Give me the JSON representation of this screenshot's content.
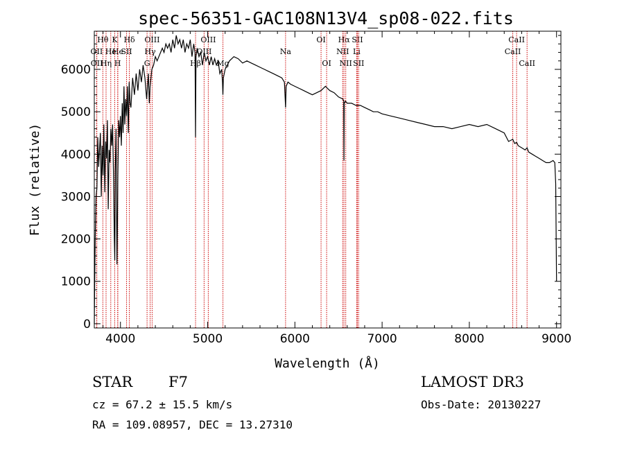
{
  "chart_data": {
    "type": "line",
    "title": "spec-56351-GAC108N13V4_sp08-022.fits",
    "xlabel": "Wavelength (Å)",
    "ylabel": "Flux (relative)",
    "xlim": [
      3700,
      9050
    ],
    "ylim": [
      -100,
      6900
    ],
    "xticks": [
      4000,
      5000,
      6000,
      7000,
      8000,
      9000
    ],
    "yticks": [
      0,
      1000,
      2000,
      3000,
      4000,
      5000,
      6000
    ],
    "line_color": "#000000",
    "marker_color": "#cc0000",
    "series": [
      {
        "name": "flux",
        "x": [
          3700,
          3705,
          3710,
          3720,
          3730,
          3740,
          3750,
          3760,
          3770,
          3780,
          3790,
          3800,
          3810,
          3820,
          3830,
          3840,
          3850,
          3860,
          3870,
          3880,
          3890,
          3900,
          3910,
          3920,
          3930,
          3935,
          3940,
          3950,
          3960,
          3965,
          3970,
          3980,
          3990,
          4000,
          4010,
          4020,
          4030,
          4040,
          4050,
          4060,
          4070,
          4080,
          4090,
          4100,
          4110,
          4120,
          4140,
          4160,
          4180,
          4200,
          4220,
          4240,
          4260,
          4280,
          4300,
          4320,
          4330,
          4340,
          4350,
          4360,
          4380,
          4400,
          4420,
          4440,
          4460,
          4480,
          4500,
          4520,
          4540,
          4560,
          4580,
          4600,
          4620,
          4640,
          4660,
          4680,
          4700,
          4720,
          4740,
          4760,
          4780,
          4800,
          4820,
          4840,
          4855,
          4861,
          4866,
          4880,
          4900,
          4920,
          4940,
          4960,
          4980,
          5000,
          5020,
          5040,
          5060,
          5080,
          5100,
          5120,
          5140,
          5160,
          5170,
          5175,
          5180,
          5200,
          5250,
          5300,
          5350,
          5400,
          5450,
          5500,
          5550,
          5600,
          5650,
          5700,
          5750,
          5800,
          5850,
          5880,
          5893,
          5900,
          5920,
          5950,
          6000,
          6050,
          6100,
          6150,
          6200,
          6250,
          6300,
          6350,
          6400,
          6450,
          6500,
          6550,
          6560,
          6563,
          6566,
          6580,
          6600,
          6650,
          6700,
          6750,
          6800,
          6850,
          6900,
          6950,
          7000,
          7100,
          7200,
          7300,
          7400,
          7500,
          7600,
          7700,
          7800,
          7900,
          8000,
          8100,
          8200,
          8300,
          8400,
          8450,
          8498,
          8520,
          8542,
          8560,
          8600,
          8640,
          8662,
          8680,
          8720,
          8760,
          8800,
          8840,
          8880,
          8920,
          8960,
          8980,
          8990,
          9000
        ],
        "y": [
          0,
          1000,
          2000,
          3000,
          3200,
          4400,
          3700,
          4100,
          4500,
          3000,
          4200,
          3500,
          4700,
          3100,
          4300,
          3900,
          4800,
          2700,
          4100,
          3800,
          4600,
          4200,
          4700,
          3500,
          2000,
          1500,
          3600,
          4600,
          1400,
          2200,
          3500,
          4800,
          4400,
          4900,
          4200,
          5200,
          4500,
          5600,
          4700,
          5300,
          4900,
          5600,
          4500,
          5700,
          5200,
          5100,
          5800,
          5400,
          5900,
          5500,
          6000,
          5700,
          6100,
          5800,
          5300,
          5900,
          5200,
          5600,
          5800,
          6000,
          6100,
          6300,
          6200,
          6300,
          6400,
          6500,
          6400,
          6600,
          6500,
          6600,
          6400,
          6700,
          6500,
          6800,
          6600,
          6700,
          6500,
          6700,
          6400,
          6600,
          6500,
          6700,
          6300,
          6600,
          6400,
          4400,
          6300,
          6500,
          6300,
          6400,
          6100,
          6400,
          6200,
          6300,
          6100,
          6300,
          6100,
          6250,
          6100,
          6200,
          5900,
          6000,
          5700,
          5400,
          5800,
          6000,
          6200,
          6300,
          6250,
          6150,
          6200,
          6150,
          6100,
          6050,
          6000,
          5950,
          5900,
          5850,
          5800,
          5700,
          5100,
          5600,
          5700,
          5650,
          5600,
          5550,
          5500,
          5450,
          5400,
          5450,
          5500,
          5600,
          5500,
          5450,
          5350,
          5300,
          5250,
          3850,
          5200,
          5250,
          5200,
          5200,
          5150,
          5150,
          5100,
          5050,
          5000,
          5000,
          4950,
          4900,
          4850,
          4800,
          4750,
          4700,
          4650,
          4650,
          4600,
          4650,
          4700,
          4650,
          4700,
          4600,
          4500,
          4300,
          4350,
          4250,
          4280,
          4200,
          4150,
          4100,
          4150,
          4050,
          4000,
          3950,
          3900,
          3850,
          3800,
          3800,
          3850,
          3800,
          3300,
          1000
        ]
      }
    ],
    "line_markers": [
      {
        "label": "Hθ",
        "x": 3798,
        "row": 0
      },
      {
        "label": "OII",
        "x": 3727,
        "row": 1
      },
      {
        "label": "OII",
        "x": 3729,
        "row": 2
      },
      {
        "label": "He",
        "x": 3889,
        "row": 1
      },
      {
        "label": "Hη",
        "x": 3835,
        "row": 2
      },
      {
        "label": "K",
        "x": 3934,
        "row": 0
      },
      {
        "label": "He",
        "x": 3970,
        "row": 1
      },
      {
        "label": "H",
        "x": 3968,
        "row": 2
      },
      {
        "label": "Hδ",
        "x": 4102,
        "row": 0
      },
      {
        "label": "SII",
        "x": 4070,
        "row": 1
      },
      {
        "label": "OIII",
        "x": 4363,
        "row": 0
      },
      {
        "label": "Hγ",
        "x": 4340,
        "row": 1
      },
      {
        "label": "G",
        "x": 4305,
        "row": 2
      },
      {
        "label": "Hβ",
        "x": 4861,
        "row": 2
      },
      {
        "label": "OIII",
        "x": 4959,
        "row": 1
      },
      {
        "label": "OIII",
        "x": 5007,
        "row": 0
      },
      {
        "label": "Mg",
        "x": 5175,
        "row": 2
      },
      {
        "label": "Na",
        "x": 5893,
        "row": 1
      },
      {
        "label": "OI",
        "x": 6300,
        "row": 0
      },
      {
        "label": "OI",
        "x": 6364,
        "row": 2
      },
      {
        "label": "Hα",
        "x": 6563,
        "row": 0
      },
      {
        "label": "NII",
        "x": 6548,
        "row": 1
      },
      {
        "label": "NII",
        "x": 6583,
        "row": 2
      },
      {
        "label": "SII",
        "x": 6717,
        "row": 0
      },
      {
        "label": "Li",
        "x": 6708,
        "row": 1
      },
      {
        "label": "SII",
        "x": 6731,
        "row": 2
      },
      {
        "label": "CaII",
        "x": 8542,
        "row": 0
      },
      {
        "label": "CaII",
        "x": 8498,
        "row": 1
      },
      {
        "label": "CaII",
        "x": 8662,
        "row": 2
      }
    ]
  },
  "info": {
    "class_label": "STAR",
    "subclass": "F7",
    "survey": "LAMOST DR3",
    "cz": "cz = 67.2 ± 15.5 km/s",
    "obs_date": "Obs-Date: 20130227",
    "coords": "RA = 109.08957, DEC =  13.27310"
  }
}
